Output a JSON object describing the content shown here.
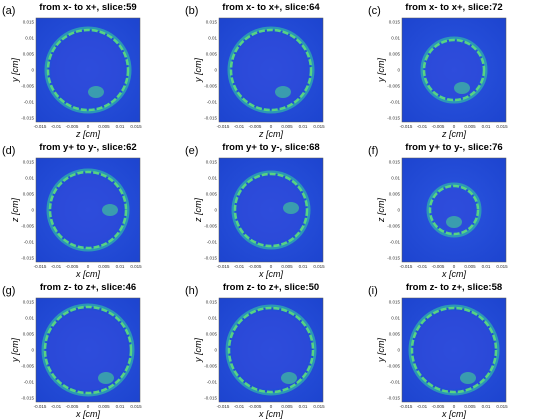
{
  "figure": {
    "xticks": [
      "-0.015",
      "-0.01",
      "-0.005",
      "0",
      "0.005",
      "0.01",
      "0.015"
    ],
    "yticks": [
      "0.015",
      "0.01",
      "0.005",
      "0",
      "-0.005",
      "-0.01",
      "-0.015"
    ],
    "panels": [
      {
        "label": "(a)",
        "title": "from x- to x+, slice:59",
        "xlabel": "z [cm]",
        "ylabel": "y [cm]"
      },
      {
        "label": "(b)",
        "title": "from x- to x+, slice:64",
        "xlabel": "z [cm]",
        "ylabel": "y [cm]"
      },
      {
        "label": "(c)",
        "title": "from x- to x+, slice:72",
        "xlabel": "z [cm]",
        "ylabel": "y [cm]"
      },
      {
        "label": "(d)",
        "title": "from y+ to y-, slice:62",
        "xlabel": "x [cm]",
        "ylabel": "z [cm]"
      },
      {
        "label": "(e)",
        "title": "from y+ to y-, slice:68",
        "xlabel": "x [cm]",
        "ylabel": "z [cm]"
      },
      {
        "label": "(f)",
        "title": "from y+ to y-, slice:76",
        "xlabel": "x [cm]",
        "ylabel": "z [cm]"
      },
      {
        "label": "(g)",
        "title": "from z- to z+, slice:46",
        "xlabel": "x [cm]",
        "ylabel": "y [cm]"
      },
      {
        "label": "(h)",
        "title": "from z- to z+, slice:50",
        "xlabel": "x [cm]",
        "ylabel": "y [cm]"
      },
      {
        "label": "(i)",
        "title": "from z- to z+, slice:58",
        "xlabel": "x [cm]",
        "ylabel": "y [cm]"
      }
    ]
  }
}
